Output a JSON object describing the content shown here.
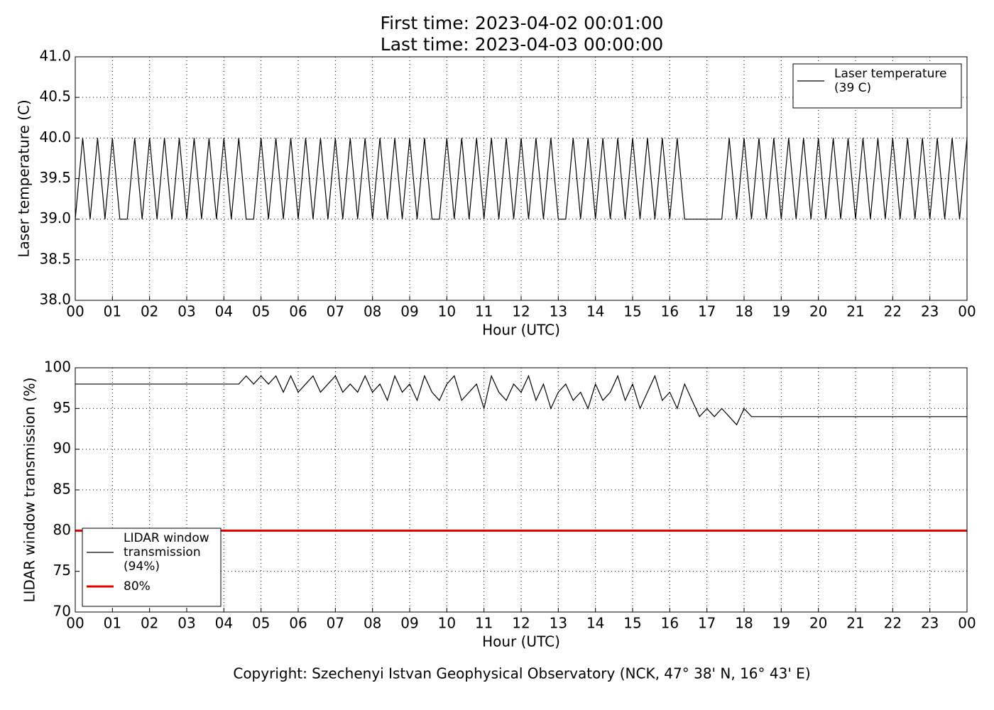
{
  "footer": "Copyright: Szechenyi Istvan Geophysical Observatory (NCK, 47° 38' N, 16° 43' E)",
  "chart_data": [
    {
      "type": "line",
      "title": "First time: 2023-04-02 00:01:00",
      "subtitle": "Last time: 2023-04-03 00:00:00",
      "xlabel": "Hour (UTC)",
      "ylabel": "Laser temperature (C)",
      "xlim": [
        0,
        24
      ],
      "ylim": [
        38,
        41
      ],
      "grid": true,
      "legend": "upper right",
      "xticks": [
        {
          "value": 0,
          "label": "00"
        },
        {
          "value": 1,
          "label": "01"
        },
        {
          "value": 2,
          "label": "02"
        },
        {
          "value": 3,
          "label": "03"
        },
        {
          "value": 4,
          "label": "04"
        },
        {
          "value": 5,
          "label": "05"
        },
        {
          "value": 6,
          "label": "06"
        },
        {
          "value": 7,
          "label": "07"
        },
        {
          "value": 8,
          "label": "08"
        },
        {
          "value": 9,
          "label": "09"
        },
        {
          "value": 10,
          "label": "10"
        },
        {
          "value": 11,
          "label": "11"
        },
        {
          "value": 12,
          "label": "12"
        },
        {
          "value": 13,
          "label": "13"
        },
        {
          "value": 14,
          "label": "14"
        },
        {
          "value": 15,
          "label": "15"
        },
        {
          "value": 16,
          "label": "16"
        },
        {
          "value": 17,
          "label": "17"
        },
        {
          "value": 18,
          "label": "18"
        },
        {
          "value": 19,
          "label": "19"
        },
        {
          "value": 20,
          "label": "20"
        },
        {
          "value": 21,
          "label": "21"
        },
        {
          "value": 22,
          "label": "22"
        },
        {
          "value": 23,
          "label": "23"
        },
        {
          "value": 24,
          "label": "00"
        }
      ],
      "yticks": [
        {
          "value": 38,
          "label": "38.0"
        },
        {
          "value": 38.5,
          "label": "38.5"
        },
        {
          "value": 39,
          "label": "39.0"
        },
        {
          "value": 39.5,
          "label": "39.5"
        },
        {
          "value": 40,
          "label": "40.0"
        },
        {
          "value": 40.5,
          "label": "40.5"
        },
        {
          "value": 41,
          "label": "41.0"
        }
      ],
      "series": [
        {
          "name": "Laser temperature\n(39 C)",
          "color": "#000000",
          "x": [
            0,
            0.2,
            0.4,
            0.6,
            0.8,
            1,
            1.2,
            1.4,
            1.6,
            1.8,
            2,
            2.2,
            2.4,
            2.6,
            2.8,
            3,
            3.2,
            3.4,
            3.6,
            3.8,
            4,
            4.2,
            4.4,
            4.6,
            4.8,
            5,
            5.2,
            5.4,
            5.6,
            5.8,
            6,
            6.2,
            6.4,
            6.6,
            6.8,
            7,
            7.2,
            7.4,
            7.6,
            7.8,
            8,
            8.2,
            8.4,
            8.6,
            8.8,
            9,
            9.2,
            9.4,
            9.6,
            9.8,
            10,
            10.2,
            10.4,
            10.6,
            10.8,
            11,
            11.2,
            11.4,
            11.6,
            11.8,
            12,
            12.2,
            12.4,
            12.6,
            12.8,
            13,
            13.2,
            13.4,
            13.6,
            13.8,
            14,
            14.2,
            14.4,
            14.6,
            14.8,
            15,
            15.2,
            15.4,
            15.6,
            15.8,
            16,
            16.2,
            16.4,
            16.6,
            16.8,
            17,
            17.2,
            17.4,
            17.6,
            17.8,
            18,
            18.2,
            18.4,
            18.6,
            18.8,
            19,
            19.2,
            19.4,
            19.6,
            19.8,
            20,
            20.2,
            20.4,
            20.6,
            20.8,
            21,
            21.2,
            21.4,
            21.6,
            21.8,
            22,
            22.2,
            22.4,
            22.6,
            22.8,
            23,
            23.2,
            23.4,
            23.6,
            23.8,
            24
          ],
          "values": [
            39,
            40,
            39,
            40,
            39,
            40,
            39,
            39,
            40,
            39,
            40,
            39,
            40,
            39,
            40,
            39,
            40,
            39,
            40,
            39,
            40,
            39,
            40,
            39,
            39,
            40,
            39,
            40,
            39,
            40,
            39,
            40,
            39,
            40,
            39,
            40,
            39,
            40,
            39,
            40,
            39,
            40,
            39,
            40,
            39,
            40,
            39,
            40,
            39,
            39,
            40,
            39,
            40,
            39,
            40,
            39,
            40,
            39,
            40,
            39,
            40,
            39,
            40,
            39,
            40,
            39,
            39,
            40,
            39,
            40,
            39,
            40,
            39,
            40,
            39,
            40,
            39,
            40,
            39,
            40,
            39,
            40,
            39,
            39,
            39,
            39,
            39,
            39,
            40,
            39,
            40,
            39,
            40,
            39,
            40,
            39,
            40,
            39,
            40,
            39,
            40,
            39,
            40,
            39,
            40,
            39,
            40,
            39,
            40,
            39,
            40,
            39,
            40,
            39,
            40,
            39,
            40,
            39,
            40,
            39,
            40
          ]
        }
      ]
    },
    {
      "type": "line",
      "xlabel": "Hour (UTC)",
      "ylabel": "LIDAR window transmission (%)",
      "xlim": [
        0,
        24
      ],
      "ylim": [
        70,
        100
      ],
      "grid": true,
      "legend": "lower left",
      "xticks": [
        {
          "value": 0,
          "label": "00"
        },
        {
          "value": 1,
          "label": "01"
        },
        {
          "value": 2,
          "label": "02"
        },
        {
          "value": 3,
          "label": "03"
        },
        {
          "value": 4,
          "label": "04"
        },
        {
          "value": 5,
          "label": "05"
        },
        {
          "value": 6,
          "label": "06"
        },
        {
          "value": 7,
          "label": "07"
        },
        {
          "value": 8,
          "label": "08"
        },
        {
          "value": 9,
          "label": "09"
        },
        {
          "value": 10,
          "label": "10"
        },
        {
          "value": 11,
          "label": "11"
        },
        {
          "value": 12,
          "label": "12"
        },
        {
          "value": 13,
          "label": "13"
        },
        {
          "value": 14,
          "label": "14"
        },
        {
          "value": 15,
          "label": "15"
        },
        {
          "value": 16,
          "label": "16"
        },
        {
          "value": 17,
          "label": "17"
        },
        {
          "value": 18,
          "label": "18"
        },
        {
          "value": 19,
          "label": "19"
        },
        {
          "value": 20,
          "label": "20"
        },
        {
          "value": 21,
          "label": "21"
        },
        {
          "value": 22,
          "label": "22"
        },
        {
          "value": 23,
          "label": "23"
        },
        {
          "value": 24,
          "label": "00"
        }
      ],
      "yticks": [
        70,
        75,
        80,
        85,
        90,
        95,
        100
      ],
      "series": [
        {
          "name": "LIDAR window\ntransmission\n(94%)",
          "color": "#000000",
          "x": [
            0,
            0.2,
            0.4,
            0.6,
            0.8,
            1,
            1.2,
            1.4,
            1.6,
            1.8,
            2,
            2.2,
            2.4,
            2.6,
            2.8,
            3,
            3.2,
            3.4,
            3.6,
            3.8,
            4,
            4.2,
            4.4,
            4.6,
            4.8,
            5,
            5.2,
            5.4,
            5.6,
            5.8,
            6,
            6.2,
            6.4,
            6.6,
            6.8,
            7,
            7.2,
            7.4,
            7.6,
            7.8,
            8,
            8.2,
            8.4,
            8.6,
            8.8,
            9,
            9.2,
            9.4,
            9.6,
            9.8,
            10,
            10.2,
            10.4,
            10.6,
            10.8,
            11,
            11.2,
            11.4,
            11.6,
            11.8,
            12,
            12.2,
            12.4,
            12.6,
            12.8,
            13,
            13.2,
            13.4,
            13.6,
            13.8,
            14,
            14.2,
            14.4,
            14.6,
            14.8,
            15,
            15.2,
            15.4,
            15.6,
            15.8,
            16,
            16.2,
            16.4,
            16.6,
            16.8,
            17,
            17.2,
            17.4,
            17.6,
            17.8,
            18,
            18.2,
            18.4,
            18.6,
            18.8,
            19,
            19.2,
            19.4,
            19.6,
            19.8,
            20,
            20.2,
            20.4,
            20.6,
            20.8,
            21,
            21.2,
            21.4,
            21.6,
            21.8,
            22,
            22.2,
            22.4,
            22.6,
            22.8,
            23,
            23.2,
            23.4,
            23.6,
            23.8,
            24
          ],
          "values": [
            98,
            98,
            98,
            98,
            98,
            98,
            98,
            98,
            98,
            98,
            98,
            98,
            98,
            98,
            98,
            98,
            98,
            98,
            98,
            98,
            98,
            98,
            98,
            99,
            98,
            99,
            98,
            99,
            97,
            99,
            97,
            98,
            99,
            97,
            98,
            99,
            97,
            98,
            97,
            99,
            97,
            98,
            96,
            99,
            97,
            98,
            96,
            99,
            97,
            96,
            98,
            99,
            96,
            97,
            98,
            95,
            99,
            97,
            96,
            98,
            97,
            99,
            96,
            98,
            95,
            97,
            98,
            96,
            97,
            95,
            98,
            96,
            97,
            99,
            96,
            98,
            95,
            97,
            99,
            96,
            97,
            95,
            98,
            96,
            94,
            95,
            94,
            95,
            94,
            93,
            95,
            94,
            94,
            94,
            94,
            94,
            94,
            94,
            94,
            94,
            94,
            94,
            94,
            94,
            94,
            94,
            94,
            94,
            94,
            94,
            94,
            94,
            94,
            94,
            94,
            94,
            94,
            94,
            94,
            94,
            94
          ]
        },
        {
          "name": "80%",
          "color": "#e00000",
          "x": [
            0,
            24
          ],
          "values": [
            80,
            80
          ]
        }
      ]
    }
  ]
}
